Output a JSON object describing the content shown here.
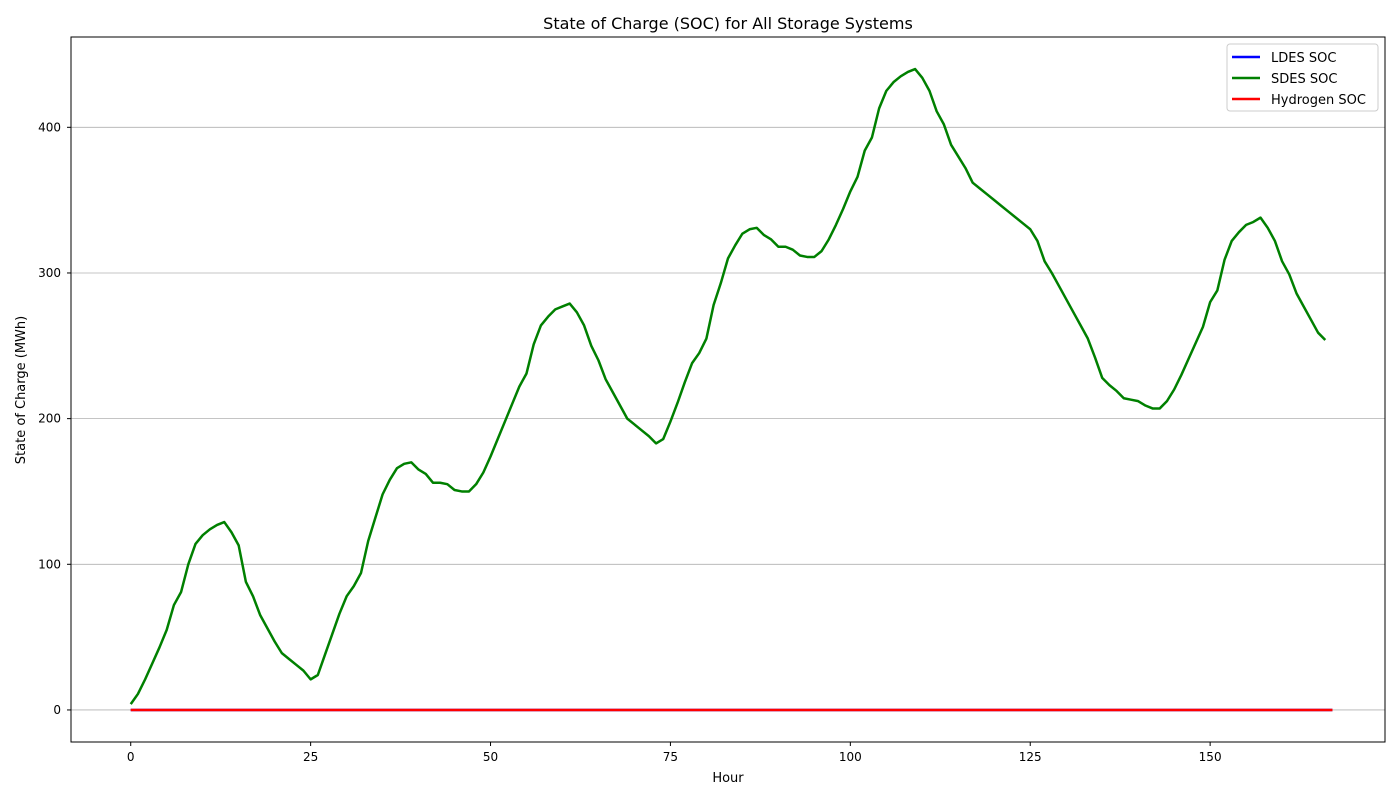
{
  "chart_data": {
    "type": "line",
    "title": "State of Charge (SOC) for All Storage Systems",
    "xlabel": "Hour",
    "ylabel": "State of Charge (MWh)",
    "xlim": [
      -8.3,
      174.3
    ],
    "ylim": [
      -22,
      462
    ],
    "xticks": [
      0,
      25,
      50,
      75,
      100,
      125,
      150
    ],
    "yticks": [
      0,
      100,
      200,
      300,
      400
    ],
    "grid": "horizontal",
    "legend_position": "top-right",
    "series": [
      {
        "name": "LDES SOC",
        "color": "#0000ff",
        "x": [
          0,
          167
        ],
        "y": [
          0,
          0
        ]
      },
      {
        "name": "SDES SOC",
        "color": "#008000",
        "x": [
          0,
          1,
          2,
          3,
          4,
          5,
          6,
          7,
          8,
          9,
          10,
          11,
          12,
          13,
          14,
          15,
          16,
          17,
          18,
          19,
          20,
          21,
          22,
          23,
          24,
          25,
          26,
          27,
          28,
          29,
          30,
          31,
          32,
          33,
          34,
          35,
          36,
          37,
          38,
          39,
          40,
          41,
          42,
          43,
          44,
          45,
          46,
          47,
          48,
          49,
          50,
          51,
          52,
          53,
          54,
          55,
          56,
          57,
          58,
          59,
          60,
          61,
          62,
          63,
          64,
          65,
          66,
          67,
          68,
          69,
          70,
          71,
          72,
          73,
          74,
          75,
          76,
          77,
          78,
          79,
          80,
          81,
          82,
          83,
          84,
          85,
          86,
          87,
          88,
          89,
          90,
          91,
          92,
          93,
          94,
          95,
          96,
          97,
          98,
          99,
          100,
          101,
          102,
          103,
          104,
          105,
          106,
          107,
          108,
          109,
          110,
          111,
          112,
          113,
          114,
          115,
          116,
          117,
          118,
          119,
          120,
          121,
          122,
          123,
          124,
          125,
          126,
          127,
          128,
          129,
          130,
          131,
          132,
          133,
          134,
          135,
          136,
          137,
          138,
          139,
          140,
          141,
          142,
          143,
          144,
          145,
          146,
          147,
          148,
          149,
          150,
          151,
          152,
          153,
          154,
          155,
          156,
          157,
          158,
          159,
          160,
          161,
          162,
          163,
          164,
          165,
          166
        ],
        "y": [
          4,
          11,
          21,
          32,
          43,
          55,
          72,
          81,
          100,
          114,
          120,
          124,
          127,
          129,
          122,
          113,
          88,
          78,
          65,
          56,
          47,
          39,
          35,
          31,
          27,
          21,
          24,
          38,
          52,
          66,
          78,
          85,
          94,
          116,
          132,
          148,
          158,
          166,
          169,
          170,
          165,
          162,
          156,
          156,
          155,
          151,
          150,
          150,
          155,
          163,
          174,
          186,
          198,
          210,
          222,
          231,
          251,
          264,
          270,
          275,
          277,
          279,
          273,
          264,
          250,
          240,
          227,
          218,
          209,
          200,
          196,
          192,
          188,
          183,
          186,
          198,
          211,
          225,
          238,
          245,
          255,
          278,
          293,
          310,
          319,
          327,
          330,
          331,
          326,
          323,
          318,
          318,
          316,
          312,
          311,
          311,
          315,
          323,
          333,
          344,
          356,
          366,
          384,
          393,
          413,
          425,
          431,
          435,
          438,
          440,
          434,
          425,
          411,
          402,
          388,
          380,
          372,
          362,
          358,
          354,
          350,
          346,
          342,
          338,
          334,
          330,
          322,
          308,
          300,
          291,
          282,
          273,
          264,
          255,
          242,
          228,
          223,
          219,
          214,
          213,
          212,
          209,
          207,
          207,
          212,
          220,
          230,
          241,
          252,
          263,
          280,
          288,
          309,
          322,
          328,
          333,
          335,
          338,
          331,
          322,
          308,
          299,
          286,
          277,
          268,
          259,
          254
        ]
      },
      {
        "name": "Hydrogen SOC",
        "color": "#ff0000",
        "x": [
          0,
          167
        ],
        "y": [
          0,
          0
        ]
      }
    ]
  }
}
